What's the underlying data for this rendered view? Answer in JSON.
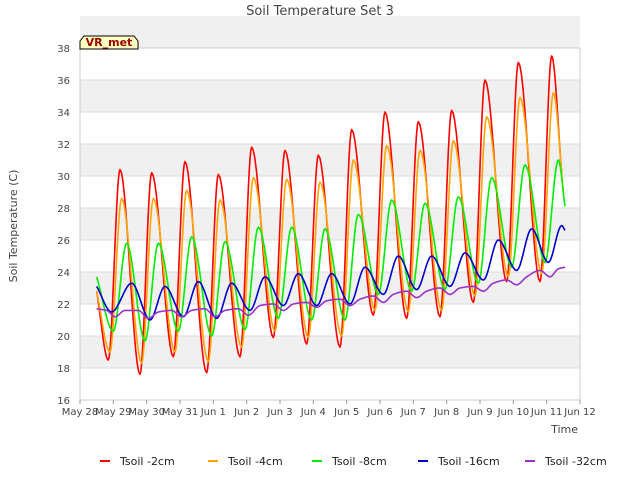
{
  "chart_data": {
    "type": "line",
    "title": "Soil Temperature Set 3",
    "xlabel": "Time",
    "ylabel": "Soil Temperature (C)",
    "badge": "VR_met",
    "x_ticks": [
      "May 28",
      "May 29",
      "May 30",
      "May 31",
      "Jun 1",
      "Jun 2",
      "Jun 3",
      "Jun 4",
      "Jun 5",
      "Jun 6",
      "Jun 7",
      "Jun 8",
      "Jun 9",
      "Jun 10",
      "Jun 11",
      "Jun 12"
    ],
    "xlim": [
      0,
      15
    ],
    "ylim": [
      16,
      38
    ],
    "y_ticks": [
      16,
      18,
      20,
      22,
      24,
      26,
      28,
      30,
      32,
      34,
      36,
      38
    ],
    "grid": true,
    "legend_position": "bottom",
    "series": [
      {
        "name": "Tsoil -2cm",
        "color": "#ff0000",
        "shape": {
          "amp_scale": 1.0,
          "phase": 0.0,
          "sharp": 0.0
        },
        "points": [
          [
            0.5,
            22.8
          ],
          [
            0.85,
            18.5
          ],
          [
            1.2,
            30.4
          ],
          [
            1.8,
            17.6
          ],
          [
            2.15,
            30.2
          ],
          [
            2.8,
            18.7
          ],
          [
            3.15,
            30.9
          ],
          [
            3.8,
            17.7
          ],
          [
            4.15,
            30.1
          ],
          [
            4.8,
            18.7
          ],
          [
            5.15,
            31.8
          ],
          [
            5.8,
            19.9
          ],
          [
            6.15,
            31.6
          ],
          [
            6.8,
            19.5
          ],
          [
            7.15,
            31.3
          ],
          [
            7.8,
            19.3
          ],
          [
            8.15,
            32.9
          ],
          [
            8.8,
            21.3
          ],
          [
            9.15,
            34.0
          ],
          [
            9.8,
            21.1
          ],
          [
            10.15,
            33.4
          ],
          [
            10.8,
            21.2
          ],
          [
            11.15,
            34.1
          ],
          [
            11.8,
            22.1
          ],
          [
            12.15,
            36.0
          ],
          [
            12.8,
            23.4
          ],
          [
            13.15,
            37.1
          ],
          [
            13.8,
            23.4
          ],
          [
            14.15,
            37.5
          ],
          [
            14.45,
            30.2
          ]
        ]
      },
      {
        "name": "Tsoil -4cm",
        "color": "#ffa500",
        "shape": {
          "amp_scale": 1.0,
          "phase": 0.05,
          "sharp": 0.0
        },
        "points": [
          [
            0.5,
            22.8
          ],
          [
            0.9,
            19.0
          ],
          [
            1.25,
            28.6
          ],
          [
            1.85,
            18.3
          ],
          [
            2.2,
            28.6
          ],
          [
            2.85,
            19.0
          ],
          [
            3.2,
            29.1
          ],
          [
            3.85,
            18.4
          ],
          [
            4.2,
            28.5
          ],
          [
            4.85,
            19.3
          ],
          [
            5.2,
            29.9
          ],
          [
            5.85,
            20.3
          ],
          [
            6.2,
            29.8
          ],
          [
            6.85,
            19.9
          ],
          [
            7.2,
            29.6
          ],
          [
            7.85,
            20.0
          ],
          [
            8.2,
            31.0
          ],
          [
            8.85,
            21.6
          ],
          [
            9.2,
            31.9
          ],
          [
            9.85,
            21.5
          ],
          [
            10.2,
            31.6
          ],
          [
            10.85,
            21.6
          ],
          [
            11.2,
            32.2
          ],
          [
            11.85,
            22.5
          ],
          [
            12.2,
            33.7
          ],
          [
            12.85,
            23.7
          ],
          [
            13.2,
            34.9
          ],
          [
            13.85,
            23.9
          ],
          [
            14.2,
            35.2
          ],
          [
            14.5,
            29.0
          ]
        ]
      },
      {
        "name": "Tsoil -8cm",
        "color": "#00ee00",
        "shape": {
          "amp_scale": 1.0,
          "phase": 0.1,
          "sharp": 0.0
        },
        "points": [
          [
            0.5,
            23.7
          ],
          [
            1.0,
            20.3
          ],
          [
            1.4,
            25.8
          ],
          [
            1.95,
            19.7
          ],
          [
            2.35,
            25.8
          ],
          [
            2.95,
            20.3
          ],
          [
            3.35,
            26.2
          ],
          [
            3.95,
            20.0
          ],
          [
            4.35,
            25.9
          ],
          [
            4.95,
            20.4
          ],
          [
            5.35,
            26.8
          ],
          [
            5.95,
            21.1
          ],
          [
            6.35,
            26.8
          ],
          [
            6.95,
            21.0
          ],
          [
            7.35,
            26.7
          ],
          [
            7.95,
            21.0
          ],
          [
            8.35,
            27.6
          ],
          [
            8.95,
            22.6
          ],
          [
            9.35,
            28.5
          ],
          [
            9.95,
            22.8
          ],
          [
            10.35,
            28.3
          ],
          [
            10.95,
            22.9
          ],
          [
            11.35,
            28.7
          ],
          [
            11.95,
            23.3
          ],
          [
            12.35,
            29.9
          ],
          [
            12.95,
            24.3
          ],
          [
            13.35,
            30.7
          ],
          [
            13.95,
            24.6
          ],
          [
            14.35,
            31.0
          ],
          [
            14.55,
            28.1
          ]
        ]
      },
      {
        "name": "Tsoil -16cm",
        "color": "#0000cc",
        "shape": {
          "amp_scale": 1.0,
          "phase": 0.0,
          "sharp": 0.0
        },
        "points": [
          [
            0.5,
            23.1
          ],
          [
            0.95,
            21.5
          ],
          [
            1.55,
            23.3
          ],
          [
            2.1,
            21.0
          ],
          [
            2.55,
            23.1
          ],
          [
            3.1,
            21.2
          ],
          [
            3.55,
            23.4
          ],
          [
            4.1,
            21.1
          ],
          [
            4.55,
            23.3
          ],
          [
            5.1,
            21.6
          ],
          [
            5.55,
            23.7
          ],
          [
            6.1,
            21.9
          ],
          [
            6.55,
            23.9
          ],
          [
            7.1,
            21.9
          ],
          [
            7.55,
            23.9
          ],
          [
            8.1,
            22.0
          ],
          [
            8.55,
            24.3
          ],
          [
            9.1,
            22.6
          ],
          [
            9.55,
            25.0
          ],
          [
            10.1,
            22.9
          ],
          [
            10.55,
            25.0
          ],
          [
            11.1,
            23.1
          ],
          [
            11.55,
            25.2
          ],
          [
            12.1,
            23.5
          ],
          [
            12.55,
            26.0
          ],
          [
            13.1,
            24.1
          ],
          [
            13.55,
            26.7
          ],
          [
            14.05,
            24.6
          ],
          [
            14.45,
            26.9
          ],
          [
            14.55,
            26.6
          ]
        ]
      },
      {
        "name": "Tsoil -32cm",
        "color": "#9932cc",
        "shape": {
          "amp_scale": 1.0,
          "phase": 0.0,
          "sharp": 0.0
        },
        "points": [
          [
            0.5,
            21.7
          ],
          [
            0.8,
            21.6
          ],
          [
            1.05,
            21.2
          ],
          [
            1.35,
            21.6
          ],
          [
            1.75,
            21.6
          ],
          [
            2.05,
            21.1
          ],
          [
            2.35,
            21.5
          ],
          [
            2.75,
            21.6
          ],
          [
            3.05,
            21.2
          ],
          [
            3.35,
            21.6
          ],
          [
            3.75,
            21.7
          ],
          [
            4.05,
            21.2
          ],
          [
            4.35,
            21.6
          ],
          [
            4.75,
            21.7
          ],
          [
            5.05,
            21.3
          ],
          [
            5.4,
            21.9
          ],
          [
            5.8,
            22.0
          ],
          [
            6.1,
            21.6
          ],
          [
            6.4,
            22.0
          ],
          [
            6.8,
            22.1
          ],
          [
            7.1,
            21.8
          ],
          [
            7.4,
            22.2
          ],
          [
            7.8,
            22.3
          ],
          [
            8.1,
            21.9
          ],
          [
            8.4,
            22.3
          ],
          [
            8.8,
            22.5
          ],
          [
            9.1,
            22.1
          ],
          [
            9.4,
            22.6
          ],
          [
            9.8,
            22.8
          ],
          [
            10.1,
            22.4
          ],
          [
            10.4,
            22.8
          ],
          [
            10.8,
            23.0
          ],
          [
            11.1,
            22.6
          ],
          [
            11.4,
            23.0
          ],
          [
            11.8,
            23.1
          ],
          [
            12.1,
            22.8
          ],
          [
            12.4,
            23.3
          ],
          [
            12.8,
            23.5
          ],
          [
            13.1,
            23.2
          ],
          [
            13.4,
            23.7
          ],
          [
            13.8,
            24.1
          ],
          [
            14.1,
            23.7
          ],
          [
            14.35,
            24.2
          ],
          [
            14.55,
            24.3
          ]
        ]
      }
    ]
  }
}
